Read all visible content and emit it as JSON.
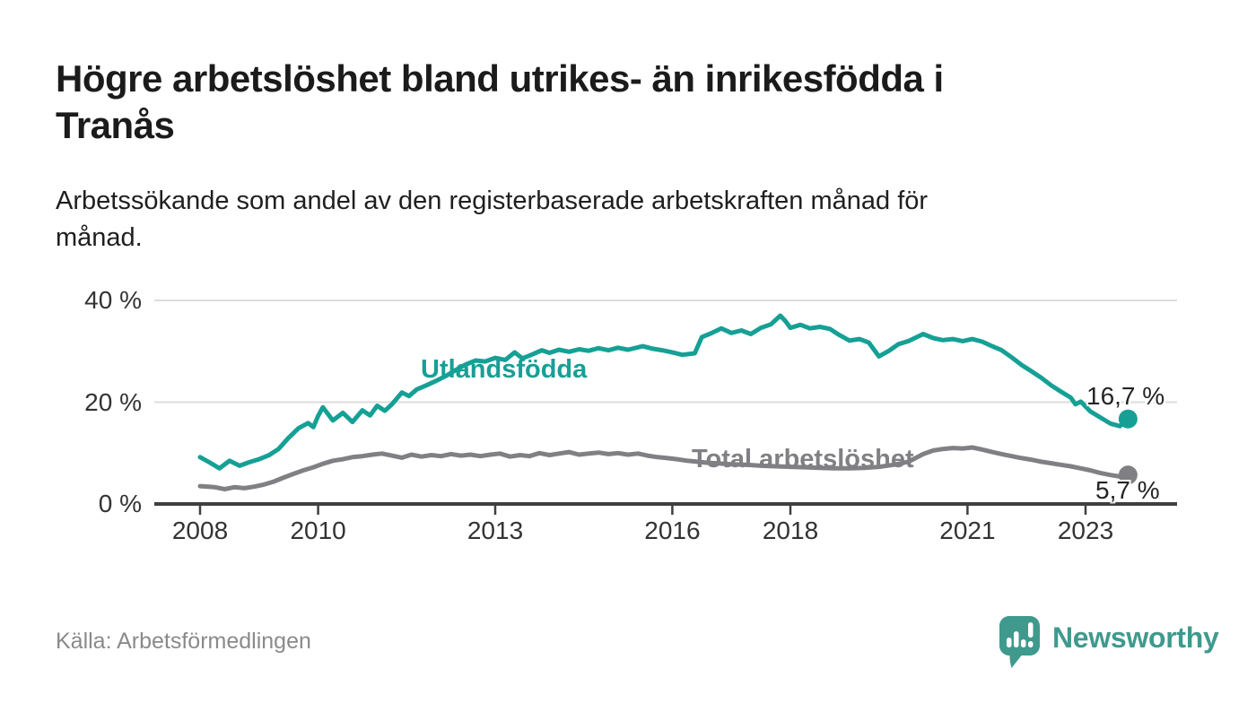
{
  "header": {
    "title": {
      "line1": "Högre arbetslöshet bland utrikes- än inrikesfödda i",
      "line2": "Tranås"
    },
    "subtitle": {
      "line1": "Arbetssökande som andel av den registerbaserade arbetskraften månad för",
      "line2": "månad."
    }
  },
  "chart_data": {
    "type": "line",
    "unit": "%",
    "grid": "horizontal",
    "grid_color": "#dcdcdc",
    "axis_color": "#3f3f3f",
    "tick_label_color": "#333333",
    "x_axis": {
      "range": [
        2007.2,
        2024.6
      ],
      "ticks": [
        {
          "label": "2008",
          "year": 2008
        },
        {
          "label": "2010",
          "year": 2010
        },
        {
          "label": "2013",
          "year": 2013
        },
        {
          "label": "2016",
          "year": 2016
        },
        {
          "label": "2018",
          "year": 2018
        },
        {
          "label": "2021",
          "year": 2021
        },
        {
          "label": "2023",
          "year": 2023
        }
      ]
    },
    "y_axis": {
      "range": [
        0,
        42
      ],
      "ticks": [
        {
          "label": "0 %",
          "value": 0
        },
        {
          "label": "20 %",
          "value": 20
        },
        {
          "label": "40 %",
          "value": 40
        }
      ]
    },
    "series": [
      {
        "name": "Utlandsfödda",
        "color": "#16a095",
        "end_label": "16,7 %",
        "end_value": 16.7,
        "points": [
          [
            2008.0,
            9.2
          ],
          [
            2008.17,
            8.1
          ],
          [
            2008.33,
            7.0
          ],
          [
            2008.5,
            8.5
          ],
          [
            2008.67,
            7.5
          ],
          [
            2008.83,
            8.2
          ],
          [
            2009.0,
            8.8
          ],
          [
            2009.17,
            9.6
          ],
          [
            2009.33,
            10.8
          ],
          [
            2009.5,
            13.0
          ],
          [
            2009.67,
            14.9
          ],
          [
            2009.83,
            15.9
          ],
          [
            2009.92,
            15.1
          ],
          [
            2010.0,
            17.3
          ],
          [
            2010.08,
            19.0
          ],
          [
            2010.25,
            16.4
          ],
          [
            2010.42,
            17.9
          ],
          [
            2010.58,
            16.1
          ],
          [
            2010.75,
            18.4
          ],
          [
            2010.88,
            17.4
          ],
          [
            2011.0,
            19.3
          ],
          [
            2011.13,
            18.3
          ],
          [
            2011.25,
            19.6
          ],
          [
            2011.42,
            21.9
          ],
          [
            2011.54,
            21.2
          ],
          [
            2011.67,
            22.5
          ],
          [
            2011.83,
            23.3
          ],
          [
            2012.0,
            24.2
          ],
          [
            2012.17,
            25.2
          ],
          [
            2012.33,
            26.3
          ],
          [
            2012.5,
            27.4
          ],
          [
            2012.67,
            28.2
          ],
          [
            2012.83,
            28.0
          ],
          [
            2013.0,
            28.7
          ],
          [
            2013.17,
            28.3
          ],
          [
            2013.33,
            29.8
          ],
          [
            2013.46,
            28.6
          ],
          [
            2013.63,
            29.4
          ],
          [
            2013.79,
            30.2
          ],
          [
            2013.92,
            29.7
          ],
          [
            2014.08,
            30.3
          ],
          [
            2014.25,
            29.9
          ],
          [
            2014.42,
            30.4
          ],
          [
            2014.58,
            30.1
          ],
          [
            2014.75,
            30.6
          ],
          [
            2014.92,
            30.2
          ],
          [
            2015.08,
            30.7
          ],
          [
            2015.25,
            30.3
          ],
          [
            2015.5,
            31.0
          ],
          [
            2015.67,
            30.5
          ],
          [
            2015.83,
            30.2
          ],
          [
            2016.0,
            29.8
          ],
          [
            2016.17,
            29.3
          ],
          [
            2016.38,
            29.6
          ],
          [
            2016.5,
            32.8
          ],
          [
            2016.67,
            33.6
          ],
          [
            2016.83,
            34.5
          ],
          [
            2017.0,
            33.6
          ],
          [
            2017.17,
            34.1
          ],
          [
            2017.33,
            33.4
          ],
          [
            2017.5,
            34.6
          ],
          [
            2017.67,
            35.3
          ],
          [
            2017.83,
            37.0
          ],
          [
            2017.92,
            35.9
          ],
          [
            2018.0,
            34.6
          ],
          [
            2018.17,
            35.2
          ],
          [
            2018.33,
            34.5
          ],
          [
            2018.5,
            34.8
          ],
          [
            2018.67,
            34.4
          ],
          [
            2018.83,
            33.2
          ],
          [
            2019.0,
            32.1
          ],
          [
            2019.17,
            32.4
          ],
          [
            2019.33,
            31.7
          ],
          [
            2019.5,
            29.0
          ],
          [
            2019.67,
            30.1
          ],
          [
            2019.83,
            31.4
          ],
          [
            2020.0,
            32.0
          ],
          [
            2020.25,
            33.4
          ],
          [
            2020.42,
            32.6
          ],
          [
            2020.58,
            32.2
          ],
          [
            2020.75,
            32.4
          ],
          [
            2020.92,
            32.0
          ],
          [
            2021.08,
            32.4
          ],
          [
            2021.25,
            31.9
          ],
          [
            2021.42,
            31.0
          ],
          [
            2021.58,
            30.2
          ],
          [
            2021.75,
            28.8
          ],
          [
            2021.92,
            27.3
          ],
          [
            2022.08,
            26.1
          ],
          [
            2022.25,
            24.8
          ],
          [
            2022.42,
            23.3
          ],
          [
            2022.58,
            22.1
          ],
          [
            2022.75,
            20.9
          ],
          [
            2022.83,
            19.6
          ],
          [
            2022.92,
            20.1
          ],
          [
            2023.08,
            18.2
          ],
          [
            2023.25,
            17.0
          ],
          [
            2023.42,
            15.8
          ],
          [
            2023.58,
            15.3
          ],
          [
            2023.72,
            16.7
          ]
        ]
      },
      {
        "name": "Total arbetslöshet",
        "color": "#808084",
        "end_label": "5,7 %",
        "end_value": 5.7,
        "points": [
          [
            2008.0,
            3.5
          ],
          [
            2008.25,
            3.3
          ],
          [
            2008.42,
            2.9
          ],
          [
            2008.58,
            3.3
          ],
          [
            2008.75,
            3.1
          ],
          [
            2008.92,
            3.4
          ],
          [
            2009.08,
            3.8
          ],
          [
            2009.25,
            4.4
          ],
          [
            2009.42,
            5.2
          ],
          [
            2009.58,
            5.9
          ],
          [
            2009.75,
            6.6
          ],
          [
            2009.92,
            7.2
          ],
          [
            2010.08,
            7.9
          ],
          [
            2010.25,
            8.5
          ],
          [
            2010.42,
            8.8
          ],
          [
            2010.58,
            9.2
          ],
          [
            2010.75,
            9.4
          ],
          [
            2010.92,
            9.7
          ],
          [
            2011.08,
            9.9
          ],
          [
            2011.25,
            9.5
          ],
          [
            2011.42,
            9.1
          ],
          [
            2011.58,
            9.7
          ],
          [
            2011.75,
            9.3
          ],
          [
            2011.92,
            9.6
          ],
          [
            2012.08,
            9.4
          ],
          [
            2012.25,
            9.8
          ],
          [
            2012.42,
            9.5
          ],
          [
            2012.58,
            9.7
          ],
          [
            2012.75,
            9.4
          ],
          [
            2012.92,
            9.7
          ],
          [
            2013.08,
            9.9
          ],
          [
            2013.25,
            9.3
          ],
          [
            2013.42,
            9.6
          ],
          [
            2013.58,
            9.4
          ],
          [
            2013.75,
            10.0
          ],
          [
            2013.92,
            9.6
          ],
          [
            2014.08,
            9.9
          ],
          [
            2014.25,
            10.2
          ],
          [
            2014.42,
            9.7
          ],
          [
            2014.58,
            9.9
          ],
          [
            2014.75,
            10.1
          ],
          [
            2014.92,
            9.8
          ],
          [
            2015.08,
            10.0
          ],
          [
            2015.25,
            9.7
          ],
          [
            2015.42,
            9.9
          ],
          [
            2015.58,
            9.5
          ],
          [
            2015.75,
            9.2
          ],
          [
            2015.92,
            9.0
          ],
          [
            2016.08,
            8.8
          ],
          [
            2016.25,
            8.5
          ],
          [
            2016.42,
            8.3
          ],
          [
            2016.58,
            8.1
          ],
          [
            2016.75,
            8.0
          ],
          [
            2017.0,
            7.8
          ],
          [
            2017.25,
            7.7
          ],
          [
            2017.5,
            7.5
          ],
          [
            2017.75,
            7.4
          ],
          [
            2018.0,
            7.3
          ],
          [
            2018.25,
            7.2
          ],
          [
            2018.5,
            7.1
          ],
          [
            2018.75,
            7.0
          ],
          [
            2019.0,
            7.0
          ],
          [
            2019.25,
            7.1
          ],
          [
            2019.5,
            7.3
          ],
          [
            2019.75,
            7.7
          ],
          [
            2020.0,
            8.3
          ],
          [
            2020.25,
            9.8
          ],
          [
            2020.42,
            10.5
          ],
          [
            2020.58,
            10.8
          ],
          [
            2020.75,
            11.0
          ],
          [
            2020.92,
            10.9
          ],
          [
            2021.08,
            11.1
          ],
          [
            2021.25,
            10.7
          ],
          [
            2021.42,
            10.2
          ],
          [
            2021.58,
            9.8
          ],
          [
            2021.75,
            9.4
          ],
          [
            2021.92,
            9.0
          ],
          [
            2022.08,
            8.7
          ],
          [
            2022.25,
            8.3
          ],
          [
            2022.42,
            8.0
          ],
          [
            2022.58,
            7.7
          ],
          [
            2022.75,
            7.4
          ],
          [
            2022.92,
            7.0
          ],
          [
            2023.08,
            6.6
          ],
          [
            2023.25,
            6.1
          ],
          [
            2023.42,
            5.7
          ],
          [
            2023.58,
            5.4
          ],
          [
            2023.72,
            5.7
          ]
        ]
      }
    ]
  },
  "footer": {
    "source": "Källa: Arbetsförmedlingen",
    "brand_name": "Newsworthy",
    "brand_color": "#3f9a8d"
  }
}
